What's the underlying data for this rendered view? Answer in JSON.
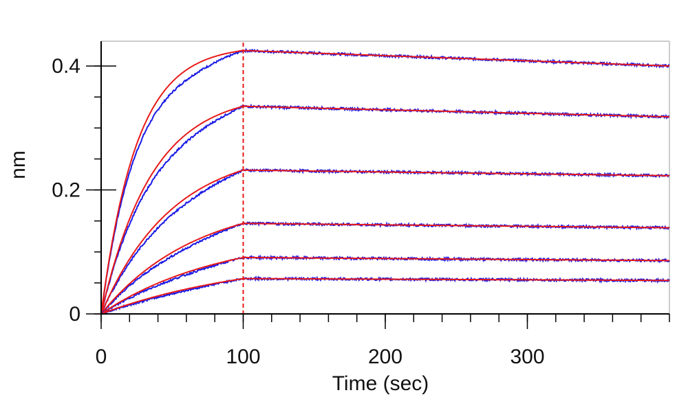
{
  "chart_data": {
    "type": "line",
    "xlabel": "Time (sec)",
    "ylabel": "nm",
    "xlim": [
      0,
      400
    ],
    "ylim": [
      0,
      0.44
    ],
    "x_ticks": [
      0,
      100,
      200,
      300
    ],
    "x_tick_labels": [
      "0",
      "100",
      "200",
      "300"
    ],
    "x_minor_step": 20,
    "y_ticks": [
      0,
      0.2,
      0.4
    ],
    "y_tick_labels": [
      "0",
      "0.2",
      "0.4"
    ],
    "y_minor_step": 0.05,
    "grid": false,
    "dissociation_start": 100,
    "association_end": 100,
    "curves": [
      {
        "plateau": 0.425,
        "k_on": 0.04,
        "end": 0.4
      },
      {
        "plateau": 0.335,
        "k_on": 0.028,
        "end": 0.318
      },
      {
        "plateau": 0.232,
        "k_on": 0.02,
        "end": 0.223
      },
      {
        "plateau": 0.146,
        "k_on": 0.015,
        "end": 0.139
      },
      {
        "plateau": 0.091,
        "k_on": 0.012,
        "end": 0.086
      },
      {
        "plateau": 0.057,
        "k_on": 0.009,
        "end": 0.054
      }
    ],
    "colors": {
      "measured": "#1a1ae6",
      "fit": "#e81818",
      "marker": "#e81818",
      "axis": "#000000",
      "frame": "#bbbbbb"
    }
  }
}
